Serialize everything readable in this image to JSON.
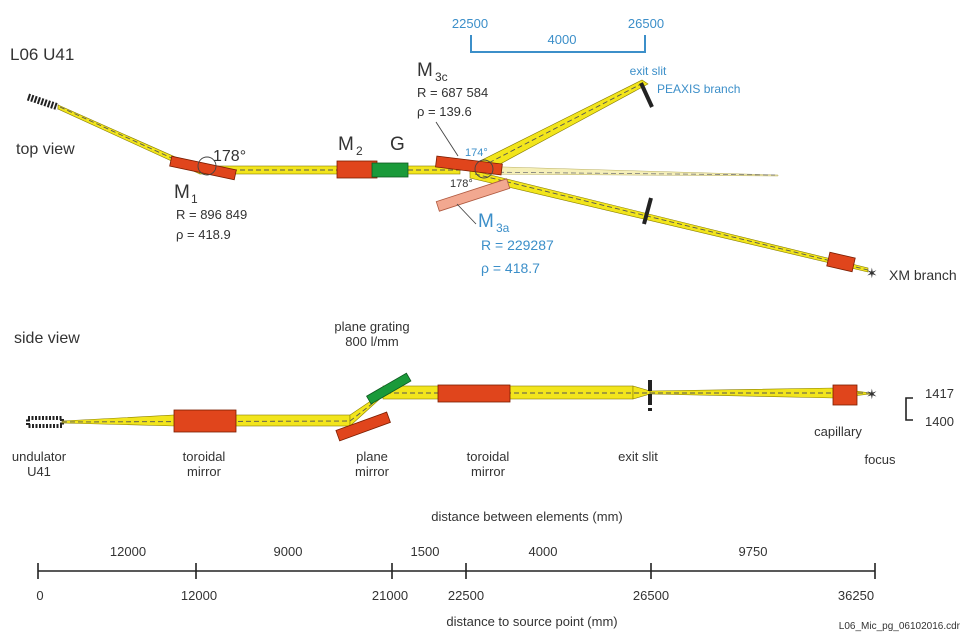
{
  "header": {
    "title": "L06  U41"
  },
  "top_view": {
    "label": "top view",
    "m1": {
      "name": "M",
      "sub": "1",
      "r": "R = 896 849",
      "rho": "ρ = 418.9",
      "angle": "178°"
    },
    "m2": {
      "name": "M",
      "sub": "2"
    },
    "grating": {
      "name": "G"
    },
    "m3c": {
      "name": "M",
      "sub": "3c",
      "r": "R = 687 584",
      "rho": "ρ = 139.6",
      "angle_upper": "174°",
      "angle_lower": "178°"
    },
    "m3a": {
      "name": "M",
      "sub": "3a",
      "r": "R = 229287",
      "rho": "ρ = 418.7"
    },
    "scale_bar": {
      "left": "22500",
      "middle": "4000",
      "right": "26500"
    },
    "exit_slit": "exit slit",
    "peaxis_branch": "PEAXIS branch",
    "xm_branch": "XM branch"
  },
  "side_view": {
    "label": "side view",
    "plane_grating": "plane grating",
    "grooves": "800 l/mm",
    "undulator": "undulator",
    "undulator_id": "U41",
    "toroidal_mirror_1": {
      "line1": "toroidal",
      "line2": "mirror"
    },
    "plane_mirror": {
      "line1": "plane",
      "line2": "mirror"
    },
    "toroidal_mirror_2": {
      "line1": "toroidal",
      "line2": "mirror"
    },
    "exit_slit": "exit slit",
    "capillary": "capillary",
    "focus": "focus",
    "height_upper": "1417",
    "height_lower": "1400"
  },
  "axis": {
    "between_title": "distance between elements (mm)",
    "between": [
      "12000",
      "9000",
      "1500",
      "4000",
      "9750"
    ],
    "source_title": "distance to source point  (mm)",
    "source": [
      "0",
      "12000",
      "21000",
      "22500",
      "26500",
      "36250"
    ]
  },
  "footer": {
    "file": "L06_Mic_pg_06102016.cdr"
  },
  "colors": {
    "beam": "#f2e51c",
    "mirror": "#e0451c",
    "grating": "#1a9a3a",
    "m3a": "#f2a890",
    "accent": "#3c8fc9",
    "text": "#333333"
  }
}
